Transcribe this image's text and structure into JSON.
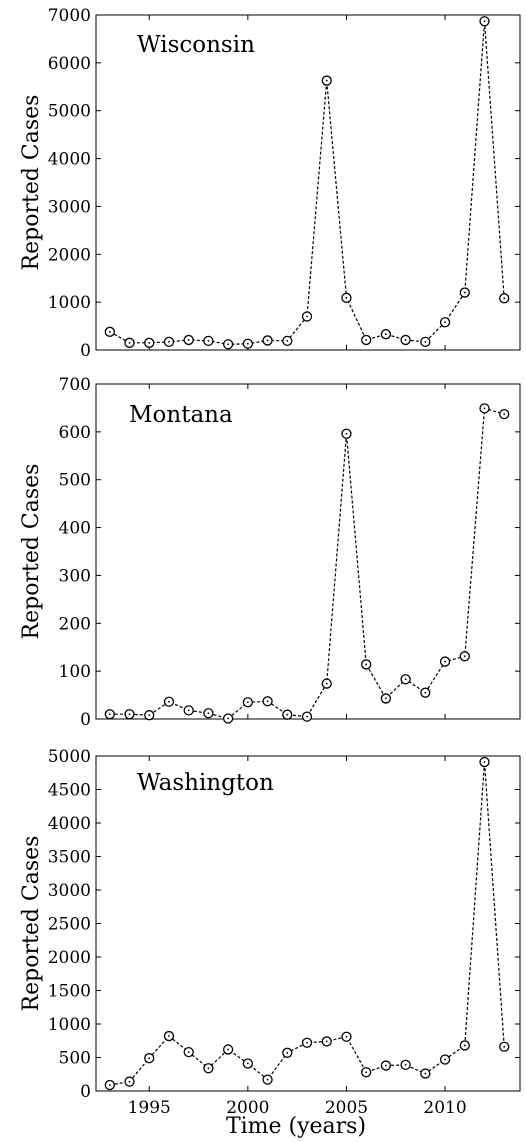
{
  "figure": {
    "xlabel": "Time (years)"
  },
  "chart_data": [
    {
      "type": "line",
      "title": "Wisconsin",
      "ylabel": "Reported Cases",
      "xlim": [
        1992.3,
        2013.8
      ],
      "ylim": [
        0,
        7000
      ],
      "yticks": [
        0,
        1000,
        2000,
        3000,
        4000,
        5000,
        6000,
        7000
      ],
      "xticks": [],
      "x": [
        1993,
        1994,
        1995,
        1996,
        1997,
        1998,
        1999,
        2000,
        2001,
        2002,
        2003,
        2004,
        2005,
        2006,
        2007,
        2008,
        2009,
        2010,
        2011,
        2012,
        2013
      ],
      "y": [
        380,
        150,
        150,
        170,
        210,
        190,
        120,
        130,
        200,
        190,
        700,
        5630,
        1090,
        210,
        330,
        210,
        170,
        580,
        1200,
        6870,
        1080
      ],
      "marker": "circle",
      "line_style": "dashed",
      "color": "#000000",
      "grid": false
    },
    {
      "type": "line",
      "title": "Montana",
      "ylabel": "Reported Cases",
      "xlim": [
        1992.3,
        2013.8
      ],
      "ylim": [
        0,
        700
      ],
      "yticks": [
        0,
        100,
        200,
        300,
        400,
        500,
        600,
        700
      ],
      "xticks": [],
      "x": [
        1993,
        1994,
        1995,
        1996,
        1997,
        1998,
        1999,
        2000,
        2001,
        2002,
        2003,
        2004,
        2005,
        2006,
        2007,
        2008,
        2009,
        2010,
        2011,
        2012,
        2013
      ],
      "y": [
        10,
        10,
        8,
        36,
        18,
        12,
        1,
        35,
        37,
        9,
        5,
        74,
        596,
        114,
        43,
        83,
        55,
        120,
        131,
        649,
        637
      ],
      "marker": "circle",
      "line_style": "dashed",
      "color": "#000000",
      "grid": false
    },
    {
      "type": "line",
      "title": "Washington",
      "ylabel": "Reported Cases",
      "xlim": [
        1992.3,
        2013.8
      ],
      "ylim": [
        0,
        5000
      ],
      "yticks": [
        0,
        500,
        1000,
        1500,
        2000,
        2500,
        3000,
        3500,
        4000,
        4500,
        5000
      ],
      "xticks": [
        1995,
        2000,
        2005,
        2010
      ],
      "x": [
        1993,
        1994,
        1995,
        1996,
        1997,
        1998,
        1999,
        2000,
        2001,
        2002,
        2003,
        2004,
        2005,
        2006,
        2007,
        2008,
        2009,
        2010,
        2011,
        2012,
        2013
      ],
      "y": [
        90,
        140,
        490,
        820,
        580,
        340,
        620,
        410,
        170,
        570,
        720,
        740,
        810,
        280,
        380,
        390,
        260,
        470,
        680,
        4910,
        660
      ],
      "marker": "circle",
      "line_style": "dashed",
      "color": "#000000",
      "grid": false
    }
  ]
}
